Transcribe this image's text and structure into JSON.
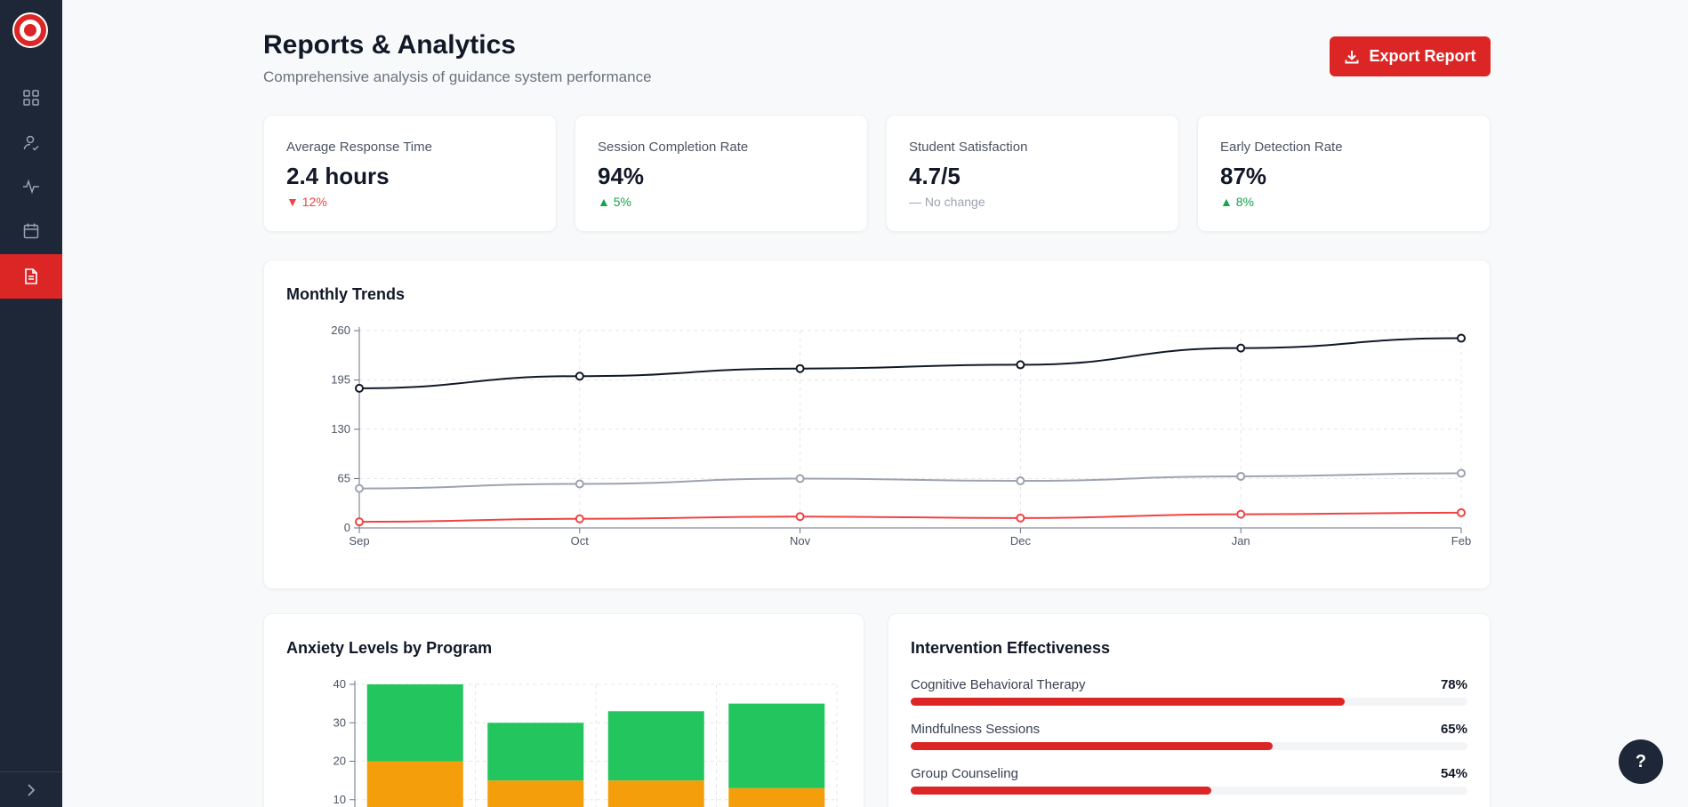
{
  "header": {
    "title": "Reports & Analytics",
    "subtitle": "Comprehensive analysis of guidance system performance",
    "export_label": "Export Report"
  },
  "sidebar": {
    "items": [
      {
        "icon": "dashboard-grid-icon",
        "active": false
      },
      {
        "icon": "users-icon",
        "active": false
      },
      {
        "icon": "activity-icon",
        "active": false
      },
      {
        "icon": "calendar-icon",
        "active": false
      },
      {
        "icon": "reports-document-icon",
        "active": true
      }
    ],
    "expand_icon": "chevron-right-icon"
  },
  "stats": [
    {
      "label": "Average Response Time",
      "value": "2.4 hours",
      "change": "▼ 12%",
      "trend": "down"
    },
    {
      "label": "Session Completion Rate",
      "value": "94%",
      "change": "▲ 5%",
      "trend": "up"
    },
    {
      "label": "Student Satisfaction",
      "value": "4.7/5",
      "change": "— No change",
      "trend": "flat"
    },
    {
      "label": "Early Detection Rate",
      "value": "87%",
      "change": "▲ 8%",
      "trend": "up"
    }
  ],
  "monthly_trends": {
    "title": "Monthly Trends"
  },
  "anxiety": {
    "title": "Anxiety Levels by Program"
  },
  "intervention": {
    "title": "Intervention Effectiveness",
    "items": [
      {
        "label": "Cognitive Behavioral Therapy",
        "value": "78%",
        "pct": 78
      },
      {
        "label": "Mindfulness Sessions",
        "value": "65%",
        "pct": 65
      },
      {
        "label": "Group Counseling",
        "value": "54%",
        "pct": 54
      }
    ]
  },
  "help": {
    "label": "?"
  },
  "colors": {
    "accent": "#dc2626",
    "sidebar": "#1e2737",
    "series_dark": "#111827",
    "series_gray": "#9ca3af",
    "series_red": "#ef4444",
    "green": "#22c55e",
    "orange": "#f59e0b"
  },
  "chart_data": [
    {
      "type": "line",
      "title": "Monthly Trends",
      "categories": [
        "Sep",
        "Oct",
        "Nov",
        "Dec",
        "Jan",
        "Feb"
      ],
      "ylim": [
        0,
        260
      ],
      "yticks": [
        0,
        65,
        130,
        195,
        260
      ],
      "grid": true,
      "series": [
        {
          "values": [
            184,
            200,
            210,
            215,
            237,
            250
          ],
          "color": "#111827"
        },
        {
          "values": [
            52,
            58,
            65,
            62,
            68,
            72
          ],
          "color": "#9ca3af"
        },
        {
          "values": [
            8,
            12,
            15,
            13,
            18,
            20
          ],
          "color": "#ef4444"
        }
      ]
    },
    {
      "type": "bar",
      "stacked": true,
      "title": "Anxiety Levels by Program",
      "categories": [
        "",
        "",
        "",
        ""
      ],
      "ylim": [
        0,
        40
      ],
      "yticks": [
        10,
        20,
        30,
        40
      ],
      "grid": true,
      "series": [
        {
          "values": [
            0,
            0,
            0,
            0
          ],
          "color": "#ef4444"
        },
        {
          "values": [
            20,
            15,
            15,
            13
          ],
          "color": "#f59e0b"
        },
        {
          "values": [
            20,
            15,
            18,
            22
          ],
          "color": "#22c55e"
        }
      ]
    }
  ]
}
